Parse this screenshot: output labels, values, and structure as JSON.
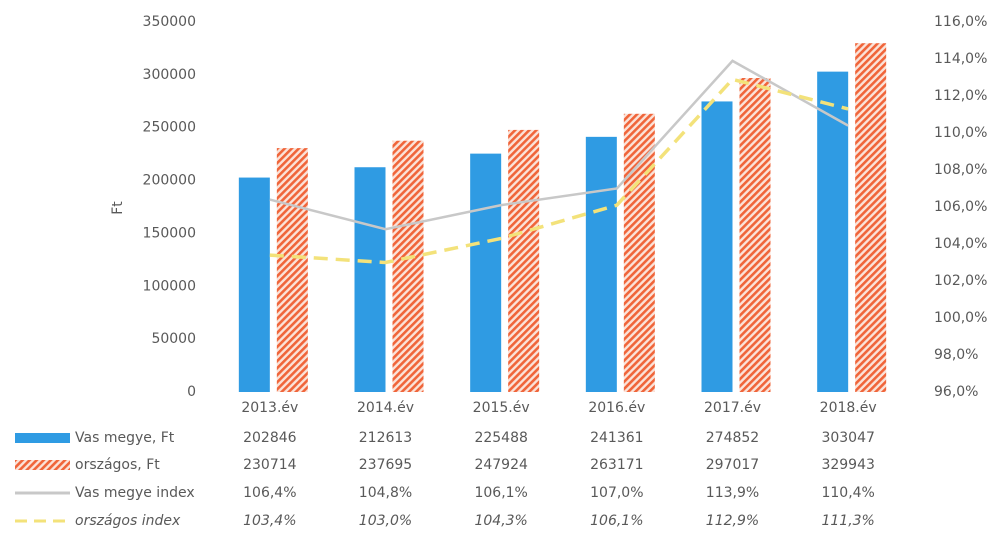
{
  "chart_data": {
    "type": "bar",
    "y_label": "Ft",
    "categories": [
      "2013.év",
      "2014.év",
      "2015.év",
      "2016.év",
      "2017.év",
      "2018.év"
    ],
    "ylim": [
      0,
      350000
    ],
    "yticks": [
      0,
      50000,
      100000,
      150000,
      200000,
      250000,
      300000,
      350000
    ],
    "y2lim": [
      96,
      116
    ],
    "y2ticks": [
      {
        "value": 96,
        "label": "96,0%"
      },
      {
        "value": 98,
        "label": "98,0%"
      },
      {
        "value": 100,
        "label": "100,0%"
      },
      {
        "value": 102,
        "label": "102,0%"
      },
      {
        "value": 104,
        "label": "104,0%"
      },
      {
        "value": 106,
        "label": "106,0%"
      },
      {
        "value": 108,
        "label": "108,0%"
      },
      {
        "value": 110,
        "label": "110,0%"
      },
      {
        "value": 112,
        "label": "112,0%"
      },
      {
        "value": 114,
        "label": "114,0%"
      },
      {
        "value": 116,
        "label": "116,0%"
      }
    ],
    "series": [
      {
        "name": "Vas megye, Ft",
        "type": "bar",
        "color": "#2f9be3",
        "values": [
          202846,
          212613,
          225488,
          241361,
          274852,
          303047
        ]
      },
      {
        "name": "országos, Ft",
        "type": "hatched-bar",
        "color": "#f0653a",
        "values": [
          230714,
          237695,
          247924,
          263171,
          297017,
          329943
        ]
      },
      {
        "name": "Vas megye index",
        "type": "line",
        "axis": "y2",
        "color": "#c8c8c8",
        "values": [
          106.4,
          104.8,
          106.1,
          107.0,
          113.9,
          110.4
        ],
        "value_labels": [
          "106,4%",
          "104,8%",
          "106,1%",
          "107,0%",
          "113,9%",
          "110,4%"
        ]
      },
      {
        "name": "országos index",
        "type": "dashed-line",
        "axis": "y2",
        "color": "#f3e27a",
        "values": [
          103.4,
          103.0,
          104.3,
          106.1,
          112.9,
          111.3
        ],
        "value_labels": [
          "103,4%",
          "103,0%",
          "104,3%",
          "106,1%",
          "112,9%",
          "111,3%"
        ]
      }
    ]
  }
}
